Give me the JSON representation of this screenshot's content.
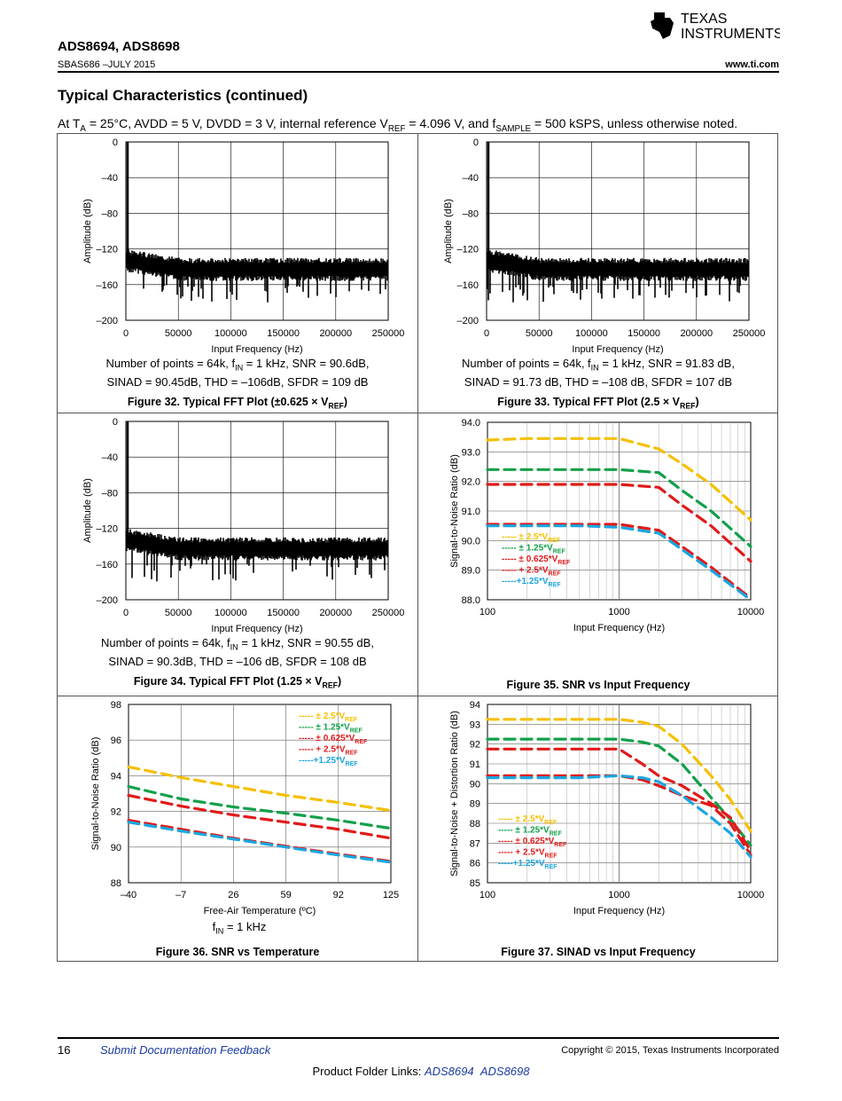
{
  "header": {
    "brand_line1": "TEXAS",
    "brand_line2": "INSTRUMENTS",
    "part_numbers": "ADS8694, ADS8698",
    "doc_id": "SBAS686 –JULY 2015",
    "website": "www.ti.com"
  },
  "section_title": "Typical Characteristics (continued)",
  "conditions": {
    "prefix": "At T",
    "ta_sub": "A",
    "mid1": " = 25°C, AVDD = 5 V, DVDD = 3 V, internal reference V",
    "vref_sub": "REF",
    "mid2": " = 4.096 V, and f",
    "fs_sub": "SAMPLE",
    "suffix": " = 500 kSPS, unless otherwise noted."
  },
  "fft": {
    "ylabel": "Amplitude (dB)",
    "xlabel": "Input Frequency (Hz)",
    "yticks": [
      "0",
      "–40",
      "–80",
      "–120",
      "–160",
      "–200"
    ],
    "xticks": [
      "0",
      "50000",
      "100000",
      "150000",
      "200000",
      "250000"
    ]
  },
  "figures": {
    "fig32": {
      "note1_a": "Number of points = 64k, f",
      "note1_sub": "IN",
      "note1_b": " = 1 kHz, SNR = 90.6dB,",
      "note2": "SINAD = 90.45dB, THD = –106dB, SFDR = 109 dB",
      "cap_a": "Figure 32. Typical FFT Plot (±0.625 × V",
      "cap_sub": "REF",
      "cap_b": ")"
    },
    "fig33": {
      "note1_a": "Number of points = 64k, f",
      "note1_sub": "IN",
      "note1_b": " = 1 kHz, SNR = 91.83 dB,",
      "note2": "SINAD = 91.73 dB, THD = –108 dB, SFDR = 107 dB",
      "cap_a": "Figure 33. Typical FFT Plot (2.5 × V",
      "cap_sub": "REF",
      "cap_b": ")"
    },
    "fig34": {
      "note1_a": "Number of points = 64k, f",
      "note1_sub": "IN",
      "note1_b": " = 1 kHz, SNR = 90.55 dB,",
      "note2": "SINAD = 90.3dB, THD = –106 dB, SFDR = 108 dB",
      "cap_a": "Figure 34. Typical FFT Plot (1.25 × V",
      "cap_sub": "REF",
      "cap_b": ")"
    },
    "fig35": {
      "caption": "Figure 35. SNR vs Input Frequency"
    },
    "fig36": {
      "caption": "Figure 36. SNR vs Temperature",
      "note_a": "f",
      "note_sub": "IN",
      "note_b": " = 1 kHz"
    },
    "fig37": {
      "caption": "Figure 37. SINAD vs Input Frequency"
    }
  },
  "legend": [
    {
      "pre": "----- ± 2.5*V",
      "sub": "REF",
      "color": "#f5c000"
    },
    {
      "pre": "----- ± 1.25*V",
      "sub": "REF",
      "color": "#12a04a"
    },
    {
      "pre": "----- ± 0.625*V",
      "sub": "REF",
      "color": "#e01a1a"
    },
    {
      "pre": "----- + 2.5*V",
      "sub": "REF",
      "color": "#e01a1a"
    },
    {
      "pre": "-----+1.25*V",
      "sub": "REF",
      "color": "#1aa6e0"
    }
  ],
  "chart_data": [
    {
      "type": "line",
      "id": "fig35",
      "xlabel": "Input Frequency (Hz)",
      "ylabel": "Signal-to-Noise Ratio (dB)",
      "xscale": "log",
      "xlim": [
        100,
        10000
      ],
      "ylim": [
        88.0,
        94.0
      ],
      "xticks": [
        "100",
        "1000",
        "10000"
      ],
      "yticks": [
        "94.0",
        "93.0",
        "92.0",
        "91.0",
        "90.0",
        "89.0",
        "88.0"
      ],
      "x": [
        100,
        200,
        500,
        1000,
        2000,
        3000,
        5000,
        10000
      ],
      "series": [
        {
          "name": "± 2.5*VREF",
          "color": "#f5c000",
          "values": [
            93.4,
            93.45,
            93.45,
            93.45,
            93.1,
            92.6,
            91.9,
            90.7
          ]
        },
        {
          "name": "± 1.25*VREF",
          "color": "#12a04a",
          "values": [
            92.4,
            92.4,
            92.4,
            92.4,
            92.3,
            91.7,
            91.0,
            89.8
          ]
        },
        {
          "name": "± 0.625*VREF",
          "color": "#e01a1a",
          "values": [
            91.9,
            91.9,
            91.9,
            91.9,
            91.8,
            91.2,
            90.5,
            89.3
          ]
        },
        {
          "name": "+ 2.5*VREF",
          "color": "#e01a1a",
          "values": [
            90.55,
            90.55,
            90.55,
            90.55,
            90.35,
            89.8,
            89.1,
            88.05
          ]
        },
        {
          "name": "+1.25*VREF",
          "color": "#1aa6e0",
          "values": [
            90.5,
            90.5,
            90.5,
            90.45,
            90.25,
            89.7,
            89.0,
            88.0
          ]
        }
      ]
    },
    {
      "type": "line",
      "id": "fig36",
      "xlabel": "Free-Air Temperature (ºC)",
      "ylabel": "Signal-to-Noise Ratio (dB)",
      "xlim": [
        -40,
        125
      ],
      "ylim": [
        88,
        98
      ],
      "xticks": [
        "–40",
        "–7",
        "26",
        "59",
        "92",
        "125"
      ],
      "yticks": [
        "98",
        "96",
        "94",
        "92",
        "90",
        "88"
      ],
      "x": [
        -40,
        -7,
        26,
        59,
        92,
        125
      ],
      "series": [
        {
          "name": "± 2.5*VREF",
          "color": "#f5c000",
          "values": [
            94.5,
            93.9,
            93.4,
            92.9,
            92.5,
            92.05
          ]
        },
        {
          "name": "± 1.25*VREF",
          "color": "#12a04a",
          "values": [
            93.4,
            92.7,
            92.25,
            91.9,
            91.5,
            91.05
          ]
        },
        {
          "name": "± 0.625*VREF",
          "color": "#e01a1a",
          "values": [
            92.9,
            92.3,
            91.8,
            91.4,
            91.0,
            90.5
          ]
        },
        {
          "name": "+ 2.5*VREF",
          "color": "#e01a1a",
          "values": [
            91.5,
            91.0,
            90.5,
            90.05,
            89.6,
            89.2
          ]
        },
        {
          "name": "+1.25*VREF",
          "color": "#1aa6e0",
          "values": [
            91.4,
            90.9,
            90.45,
            90.0,
            89.55,
            89.15
          ]
        }
      ]
    },
    {
      "type": "line",
      "id": "fig37",
      "xlabel": "Input Frequency (Hz)",
      "ylabel": "Signal-to-Noise + Distortion Ratio (dB)",
      "xscale": "log",
      "xlim": [
        100,
        10000
      ],
      "ylim": [
        85,
        94
      ],
      "xticks": [
        "100",
        "1000",
        "10000"
      ],
      "yticks": [
        "94",
        "93",
        "92",
        "91",
        "90",
        "89",
        "88",
        "87",
        "86",
        "85"
      ],
      "x": [
        100,
        200,
        500,
        1000,
        1500,
        2000,
        3000,
        5000,
        7000,
        10000
      ],
      "series": [
        {
          "name": "± 2.5*VREF",
          "color": "#f5c000",
          "values": [
            93.25,
            93.25,
            93.25,
            93.25,
            93.1,
            92.9,
            92.0,
            90.4,
            89.2,
            87.6
          ]
        },
        {
          "name": "± 1.25*VREF",
          "color": "#12a04a",
          "values": [
            92.25,
            92.25,
            92.25,
            92.25,
            92.1,
            91.9,
            91.0,
            89.3,
            88.2,
            86.9
          ]
        },
        {
          "name": "± 0.625*VREF",
          "color": "#e01a1a",
          "values": [
            91.75,
            91.75,
            91.75,
            91.75,
            91.0,
            90.4,
            89.9,
            89.0,
            88.3,
            86.6
          ]
        },
        {
          "name": "+ 2.5*VREF",
          "color": "#e01a1a",
          "values": [
            90.4,
            90.4,
            90.4,
            90.4,
            90.2,
            89.9,
            89.4,
            88.9,
            88.0,
            86.4
          ]
        },
        {
          "name": "+1.25*VREF",
          "color": "#1aa6e0",
          "values": [
            90.3,
            90.3,
            90.3,
            90.4,
            90.3,
            90.1,
            89.4,
            88.3,
            87.5,
            86.3
          ]
        }
      ]
    }
  ],
  "footer": {
    "page": "16",
    "feedback": "Submit Documentation Feedback",
    "copyright": "Copyright © 2015, Texas Instruments Incorporated",
    "links_label": "Product Folder Links: ",
    "link1": "ADS8694",
    "link2": "ADS8698"
  }
}
